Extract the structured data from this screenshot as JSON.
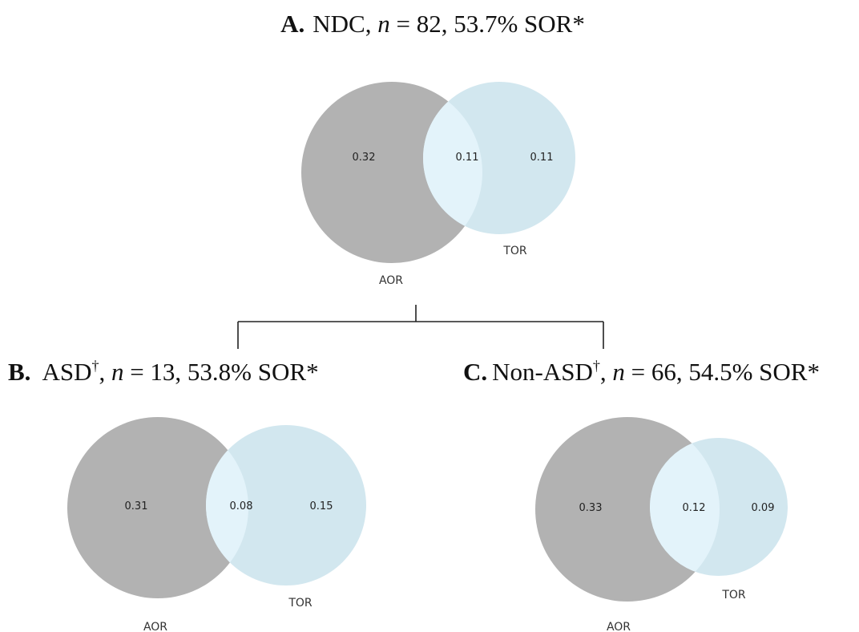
{
  "colors": {
    "aor": "#b2b2b2",
    "tor": "#d2e7ef",
    "overlap": "#e3f3fa",
    "text": "#111111"
  },
  "panels": [
    {
      "key": "A",
      "letter": "A.",
      "group": "NDC",
      "dagger": "",
      "n_prefix": ", ",
      "n_symbol": "n",
      "n_text": " = 82, 53.7% SOR*",
      "aor_label": "AOR",
      "tor_label": "TOR",
      "aor_only": "0.32",
      "both": "0.11",
      "tor_only": "0.11"
    },
    {
      "key": "B",
      "letter": "B.",
      "group": "ASD",
      "dagger": "†",
      "n_prefix": ", ",
      "n_symbol": "n",
      "n_text": " = 13, 53.8% SOR*",
      "aor_label": "AOR",
      "tor_label": "TOR",
      "aor_only": "0.31",
      "both": "0.08",
      "tor_only": "0.15"
    },
    {
      "key": "C",
      "letter": "C.",
      "group": "Non-ASD",
      "dagger": "†",
      "n_prefix": ", ",
      "n_symbol": "n",
      "n_text": " = 66, 54.5% SOR*",
      "aor_label": "AOR",
      "tor_label": "TOR",
      "aor_only": "0.33",
      "both": "0.12",
      "tor_only": "0.09"
    }
  ]
}
